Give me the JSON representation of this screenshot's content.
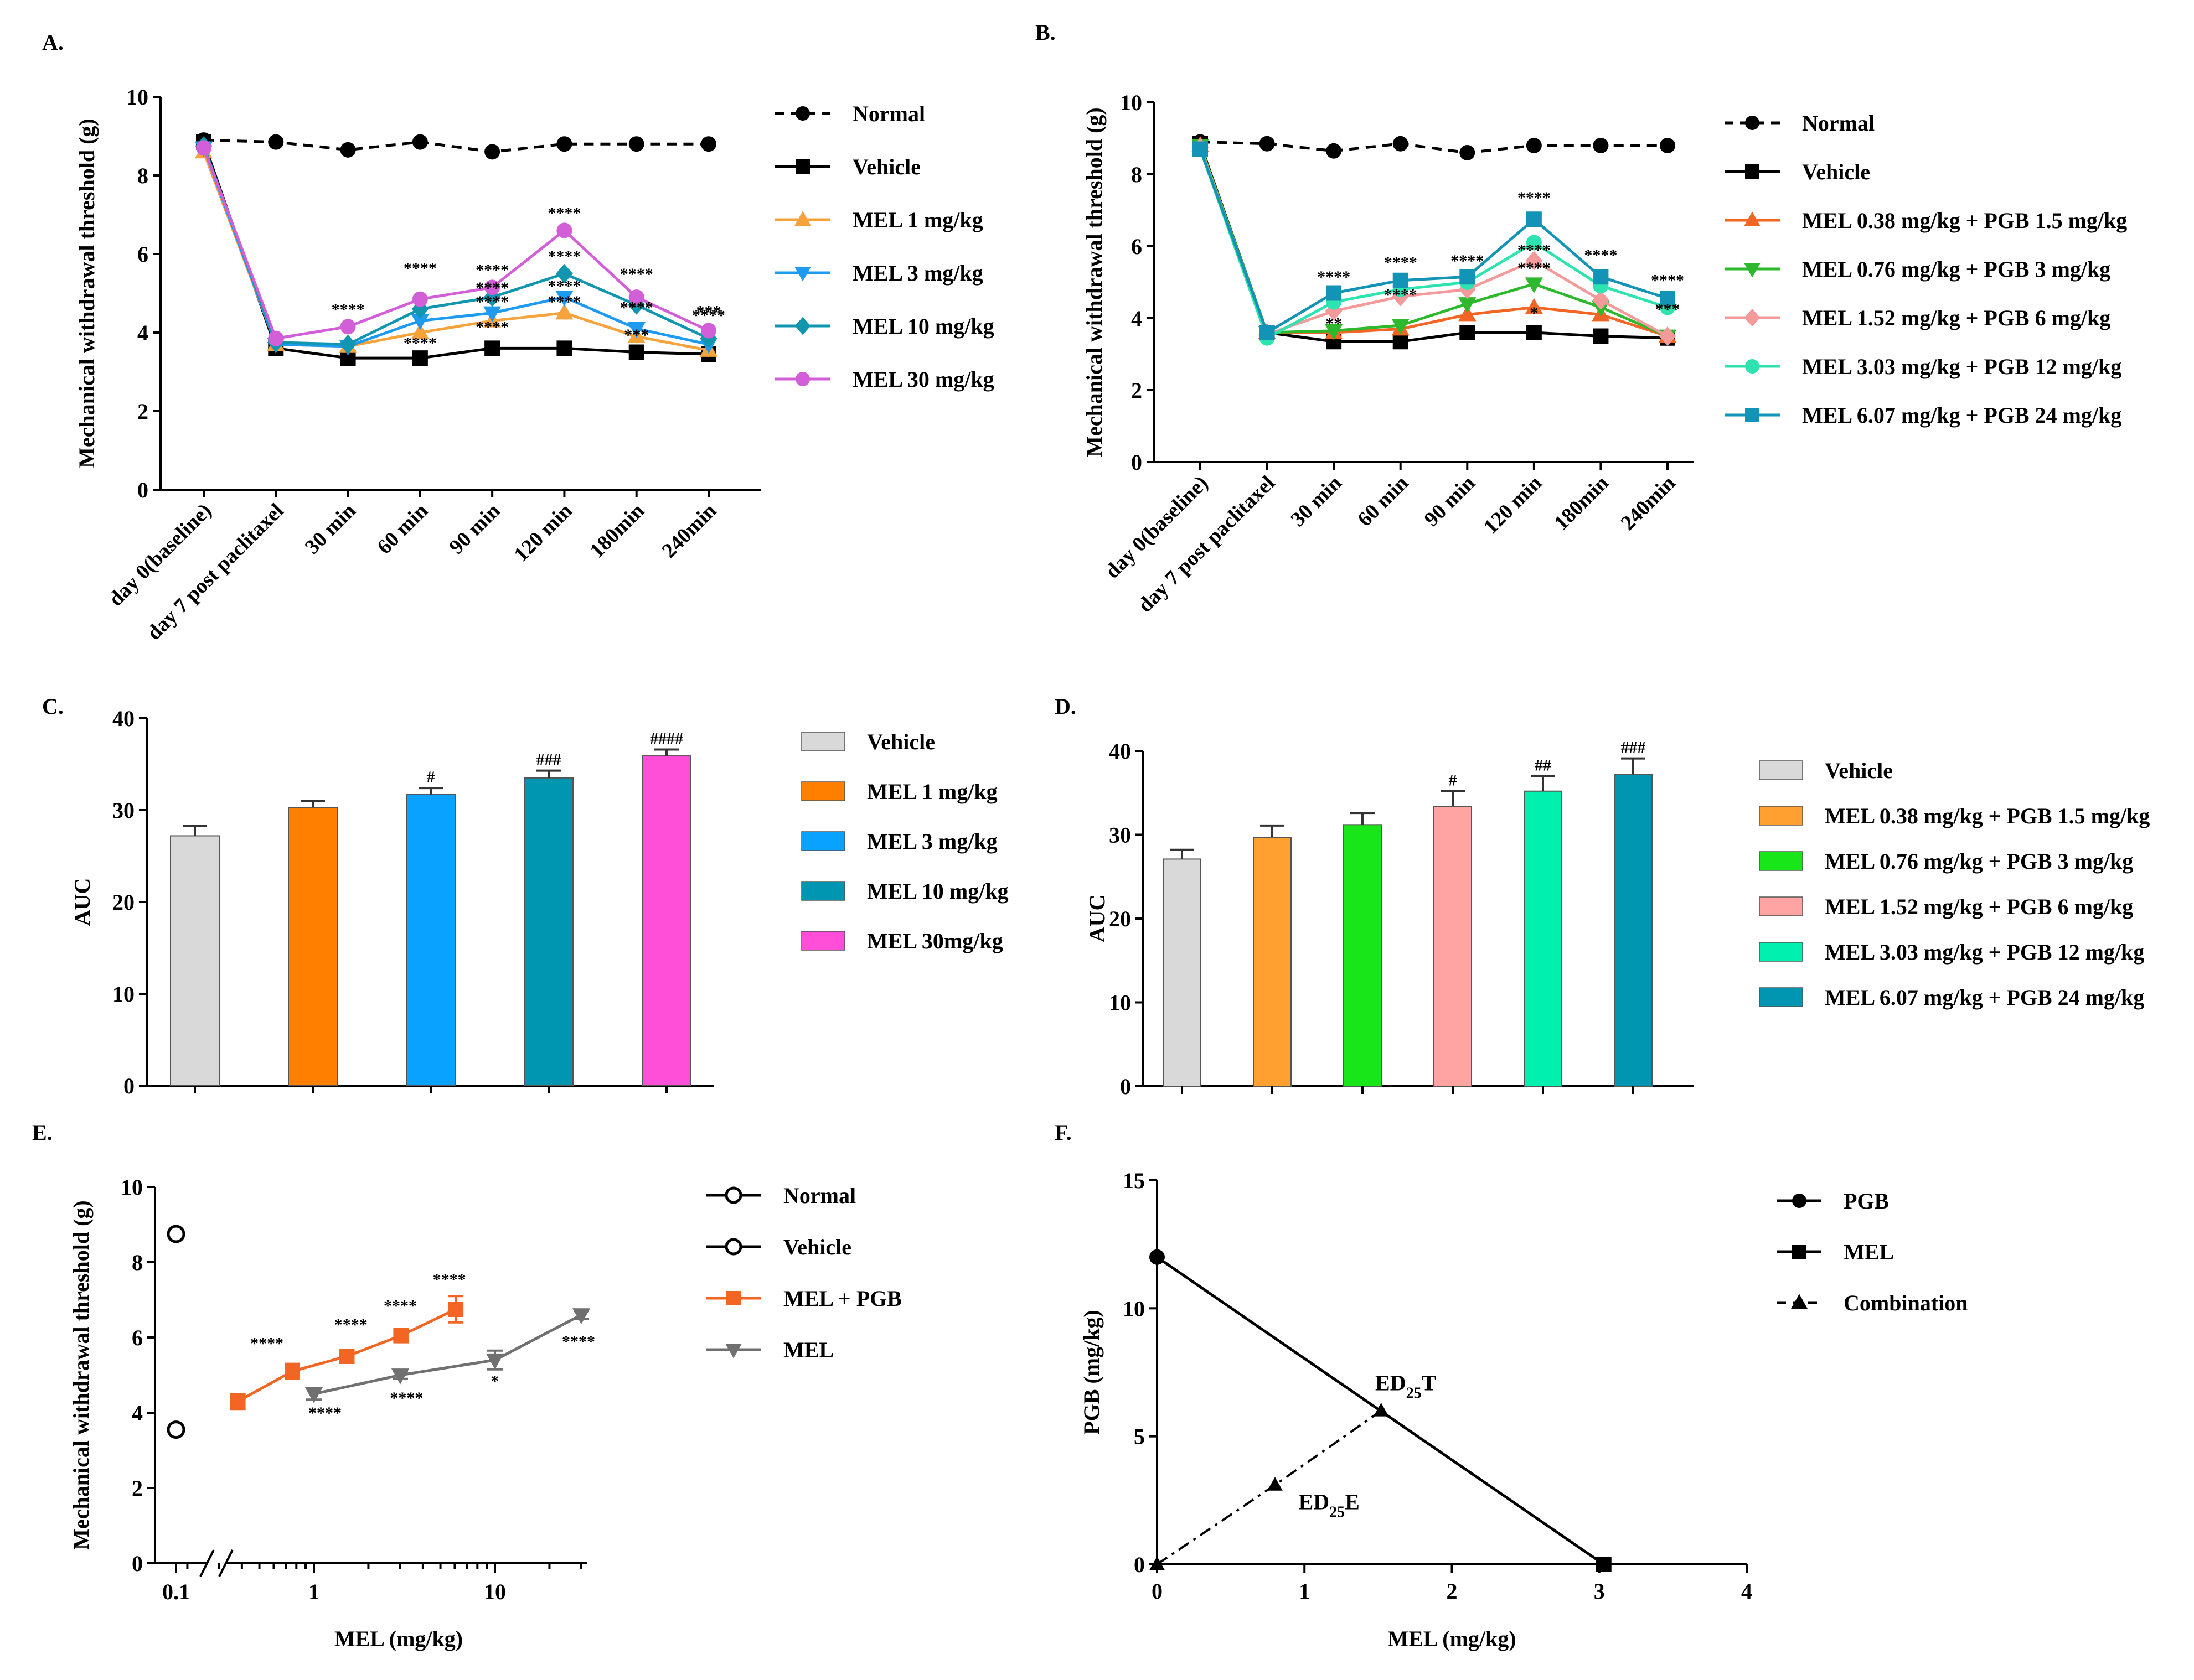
{
  "colors": {
    "normal": "#000000",
    "vehicle": "#000000",
    "mel1": "#F5A33A",
    "mel3": "#1E9BF0",
    "mel10": "#1296B0",
    "mel30": "#D35FD8",
    "combo038": "#F26522",
    "combo076": "#2DB82D",
    "combo152": "#F59A9A",
    "combo303": "#2DE3B0",
    "combo607": "#1393B5",
    "barVehicle": "#D9D9D9",
    "barMel1": "#FF7F00",
    "barMel3": "#0AA2FF",
    "barMel10": "#0095B0",
    "barMel30": "#FF4FD8",
    "barC038": "#FFA030",
    "barC076": "#19E619",
    "barC152": "#FFA3A3",
    "barC303": "#00F0B0",
    "barC607": "#0095B0",
    "melPgb": "#F26522",
    "mel": "#707070"
  },
  "chart_data": [
    {
      "panel": "A.",
      "type": "line",
      "ylabel": "Mechanical withdrawal threshold (g)",
      "xlabel": "",
      "ylim": [
        0,
        10
      ],
      "yticks": [
        0,
        2,
        4,
        6,
        8,
        10
      ],
      "categories": [
        "day 0(baseline)",
        "day 7 post paclitaxel",
        "30 min",
        "60 min",
        "90 min",
        "120 min",
        "180min",
        "240min"
      ],
      "series": [
        {
          "name": "Normal",
          "marker": "circle",
          "dash": true,
          "color": "normal",
          "values": [
            8.9,
            8.85,
            8.65,
            8.85,
            8.6,
            8.8,
            8.8,
            8.8
          ]
        },
        {
          "name": "Vehicle",
          "marker": "square",
          "dash": false,
          "color": "vehicle",
          "values": [
            8.85,
            3.6,
            3.35,
            3.35,
            3.6,
            3.6,
            3.5,
            3.45
          ]
        },
        {
          "name": "MEL 1 mg/kg",
          "marker": "triangle-up",
          "dash": false,
          "color": "mel1",
          "values": [
            8.6,
            3.7,
            3.65,
            4.0,
            4.3,
            4.5,
            3.9,
            3.55
          ]
        },
        {
          "name": "MEL 3 mg/kg",
          "marker": "triangle-down",
          "dash": false,
          "color": "mel3",
          "values": [
            8.7,
            3.7,
            3.65,
            4.3,
            4.5,
            4.9,
            4.1,
            3.7
          ]
        },
        {
          "name": "MEL 10 mg/kg",
          "marker": "diamond",
          "dash": false,
          "color": "mel10",
          "values": [
            8.75,
            3.75,
            3.7,
            4.6,
            4.9,
            5.5,
            4.7,
            3.85
          ]
        },
        {
          "name": "MEL 30 mg/kg",
          "marker": "circle",
          "dash": false,
          "color": "mel30",
          "values": [
            8.7,
            3.85,
            4.15,
            4.85,
            5.15,
            6.6,
            4.9,
            4.05
          ]
        }
      ],
      "annotations": [
        "****",
        "****",
        "****",
        "****",
        "****",
        "****",
        "****",
        "****",
        "****",
        "****",
        "****",
        "****",
        "****",
        "***",
        "****",
        "***"
      ]
    },
    {
      "panel": "B.",
      "type": "line",
      "ylabel": "Mechanical withdrawal threshold (g)",
      "xlabel": "",
      "ylim": [
        0,
        10
      ],
      "yticks": [
        0,
        2,
        4,
        6,
        8,
        10
      ],
      "categories": [
        "day 0(baseline)",
        "day 7 post paclitaxel",
        "30 min",
        "60 min",
        "90 min",
        "120 min",
        "180min",
        "240min"
      ],
      "series": [
        {
          "name": "Normal",
          "marker": "circle",
          "dash": true,
          "color": "normal",
          "values": [
            8.9,
            8.85,
            8.65,
            8.85,
            8.6,
            8.8,
            8.8,
            8.8
          ]
        },
        {
          "name": "Vehicle",
          "marker": "square",
          "dash": false,
          "color": "vehicle",
          "values": [
            8.85,
            3.6,
            3.35,
            3.35,
            3.6,
            3.6,
            3.5,
            3.45
          ]
        },
        {
          "name": "MEL 0.38 mg/kg + PGB 1.5 mg/kg",
          "marker": "triangle-up",
          "dash": false,
          "color": "combo038",
          "values": [
            8.8,
            3.6,
            3.6,
            3.7,
            4.1,
            4.3,
            4.1,
            3.5
          ]
        },
        {
          "name": "MEL 0.76 mg/kg + PGB 3 mg/kg",
          "marker": "triangle-down",
          "dash": false,
          "color": "combo076",
          "values": [
            8.8,
            3.6,
            3.65,
            3.8,
            4.4,
            4.95,
            4.3,
            3.5
          ]
        },
        {
          "name": "MEL 1.52 mg/kg + PGB 6 mg/kg",
          "marker": "diamond",
          "dash": false,
          "color": "combo152",
          "values": [
            8.75,
            3.55,
            4.2,
            4.6,
            4.8,
            5.6,
            4.5,
            3.5
          ]
        },
        {
          "name": "MEL 3.03 mg/kg + PGB 12 mg/kg",
          "marker": "circle",
          "dash": false,
          "color": "combo303",
          "values": [
            8.7,
            3.45,
            4.45,
            4.8,
            5.0,
            6.1,
            4.9,
            4.3
          ]
        },
        {
          "name": "MEL 6.07 mg/kg + PGB 24 mg/kg",
          "marker": "square",
          "dash": false,
          "color": "combo607",
          "values": [
            8.7,
            3.6,
            4.7,
            5.05,
            5.15,
            6.75,
            5.15,
            4.55
          ]
        }
      ],
      "annotations": [
        "****",
        "****",
        "****",
        "****",
        "****",
        "****",
        "****",
        "****",
        "****",
        "**",
        "*",
        "***"
      ]
    },
    {
      "panel": "C.",
      "type": "bar",
      "ylabel": "AUC",
      "xlabel": "",
      "ylim": [
        0,
        40
      ],
      "yticks": [
        0,
        10,
        20,
        30,
        40
      ],
      "categories": [
        "Vehicle",
        "MEL 1 mg/kg",
        "MEL 3 mg/kg",
        "MEL 10 mg/kg",
        "MEL 30mg/kg"
      ],
      "values": [
        27.2,
        30.3,
        31.7,
        33.5,
        35.9
      ],
      "errors": [
        1.1,
        0.7,
        0.7,
        0.8,
        0.7
      ],
      "bar_colors": [
        "barVehicle",
        "barMel1",
        "barMel3",
        "barMel10",
        "barMel30"
      ],
      "labels": [
        "",
        "",
        "#",
        "###",
        "####"
      ]
    },
    {
      "panel": "D.",
      "type": "bar",
      "ylabel": "AUC",
      "xlabel": "",
      "ylim": [
        0,
        40
      ],
      "yticks": [
        0,
        10,
        20,
        30,
        40
      ],
      "categories": [
        "Vehicle",
        "MEL 0.38 mg/kg + PGB 1.5 mg/kg",
        "MEL 0.76 mg/kg + PGB 3 mg/kg",
        "MEL 1.52 mg/kg + PGB 6 mg/kg",
        "MEL 3.03 mg/kg + PGB 12 mg/kg",
        "MEL 6.07 mg/kg + PGB 24 mg/kg"
      ],
      "values": [
        27.1,
        29.7,
        31.2,
        33.4,
        35.2,
        37.2
      ],
      "errors": [
        1.1,
        1.4,
        1.4,
        1.8,
        1.8,
        1.9
      ],
      "bar_colors": [
        "barVehicle",
        "barC038",
        "barC076",
        "barC152",
        "barC303",
        "barC607"
      ],
      "labels": [
        "",
        "",
        "",
        "#",
        "##",
        "###"
      ]
    },
    {
      "panel": "E.",
      "type": "line",
      "ylabel": "Mechanical withdrawal threshold (g)",
      "xlabel": "MEL (mg/kg)",
      "ylim": [
        0,
        10
      ],
      "yticks": [
        0,
        2,
        4,
        6,
        8,
        10
      ],
      "xscale": "log",
      "xticks": [
        "0.1",
        "1",
        "10"
      ],
      "series": [
        {
          "name": "Normal",
          "marker": "hollow-circle",
          "color": "normal",
          "x": [
            0.1
          ],
          "values": [
            8.75
          ]
        },
        {
          "name": "Vehicle",
          "marker": "hollow-circle",
          "color": "vehicle",
          "x": [
            0.1
          ],
          "values": [
            3.55
          ]
        },
        {
          "name": "MEL + PGB",
          "marker": "square",
          "color": "melPgb",
          "x": [
            0.38,
            0.76,
            1.52,
            3.03,
            6.07
          ],
          "values": [
            4.3,
            5.1,
            5.5,
            6.05,
            6.75
          ],
          "errors": [
            0.2,
            0.2,
            0.15,
            0.15,
            0.35
          ]
        },
        {
          "name": "MEL",
          "marker": "triangle-down",
          "color": "mel",
          "x": [
            1,
            3,
            10,
            30
          ],
          "values": [
            4.5,
            5.0,
            5.4,
            6.6
          ],
          "errors": [
            0.15,
            0.1,
            0.25,
            0.1
          ]
        }
      ],
      "annotations": [
        "****",
        "****",
        "****",
        "****",
        "****",
        "****",
        "*",
        "****",
        "****"
      ]
    },
    {
      "panel": "F.",
      "type": "scatter",
      "ylabel": "PGB (mg/kg)",
      "xlabel": "MEL (mg/kg)",
      "xlim": [
        0,
        4
      ],
      "ylim": [
        0,
        15
      ],
      "xticks": [
        0,
        1,
        2,
        3,
        4
      ],
      "yticks": [
        0,
        5,
        10,
        15
      ],
      "series": [
        {
          "name": "PGB",
          "marker": "circle",
          "x": [
            0
          ],
          "y": [
            12
          ]
        },
        {
          "name": "MEL",
          "marker": "square",
          "x": [
            3.03
          ],
          "y": [
            0
          ]
        },
        {
          "name": "Combination",
          "marker": "triangle-up",
          "x": [
            0,
            0.8,
            1.52
          ],
          "y": [
            0,
            3.1,
            6.0
          ]
        }
      ],
      "labels": [
        {
          "main": "ED",
          "sub": "25",
          "suffix": "T"
        },
        {
          "main": "ED",
          "sub": "25",
          "suffix": "E"
        }
      ]
    }
  ]
}
